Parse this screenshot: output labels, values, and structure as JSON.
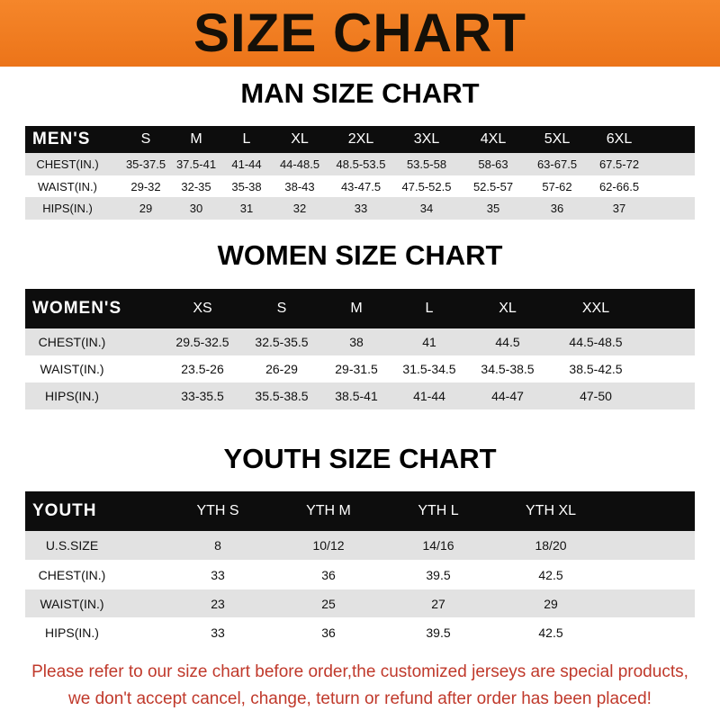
{
  "title": "SIZE CHART",
  "men": {
    "heading": "MAN SIZE CHART",
    "header": [
      "MEN'S",
      "S",
      "M",
      "L",
      "XL",
      "2XL",
      "3XL",
      "4XL",
      "5XL",
      "6XL"
    ],
    "rows": [
      [
        "CHEST(IN.)",
        "35-37.5",
        "37.5-41",
        "41-44",
        "44-48.5",
        "48.5-53.5",
        "53.5-58",
        "58-63",
        "63-67.5",
        "67.5-72"
      ],
      [
        "WAIST(IN.)",
        "29-32",
        "32-35",
        "35-38",
        "38-43",
        "43-47.5",
        "47.5-52.5",
        "52.5-57",
        "57-62",
        "62-66.5"
      ],
      [
        "HIPS(IN.)",
        "29",
        "30",
        "31",
        "32",
        "33",
        "34",
        "35",
        "36",
        "37"
      ]
    ]
  },
  "women": {
    "heading": "WOMEN SIZE CHART",
    "header": [
      "WOMEN'S",
      "XS",
      "S",
      "M",
      "L",
      "XL",
      "XXL"
    ],
    "rows": [
      [
        "CHEST(IN.)",
        "29.5-32.5",
        "32.5-35.5",
        "38",
        "41",
        "44.5",
        "44.5-48.5"
      ],
      [
        "WAIST(IN.)",
        "23.5-26",
        "26-29",
        "29-31.5",
        "31.5-34.5",
        "34.5-38.5",
        "38.5-42.5"
      ],
      [
        "HIPS(IN.)",
        "33-35.5",
        "35.5-38.5",
        "38.5-41",
        "41-44",
        "44-47",
        "47-50"
      ]
    ]
  },
  "youth": {
    "heading": "YOUTH SIZE CHART",
    "header": [
      "YOUTH",
      "YTH S",
      "YTH M",
      "YTH L",
      "YTH XL"
    ],
    "rows": [
      [
        "U.S.SIZE",
        "8",
        "10/12",
        "14/16",
        "18/20"
      ],
      [
        "CHEST(IN.)",
        "33",
        "36",
        "39.5",
        "42.5"
      ],
      [
        "WAIST(IN.)",
        "23",
        "25",
        "27",
        "29"
      ],
      [
        "HIPS(IN.)",
        "33",
        "36",
        "39.5",
        "42.5"
      ]
    ]
  },
  "notice": [
    "Please refer to our size chart before order,the customized jerseys are special products,",
    "we don't accept cancel, change, teturn or refund after order has been placed!"
  ],
  "colors": {
    "banner": "#f07a1e",
    "header_row": "#0d0d0d",
    "stripe": "#e2e2e2",
    "notice": "#c0392b"
  }
}
